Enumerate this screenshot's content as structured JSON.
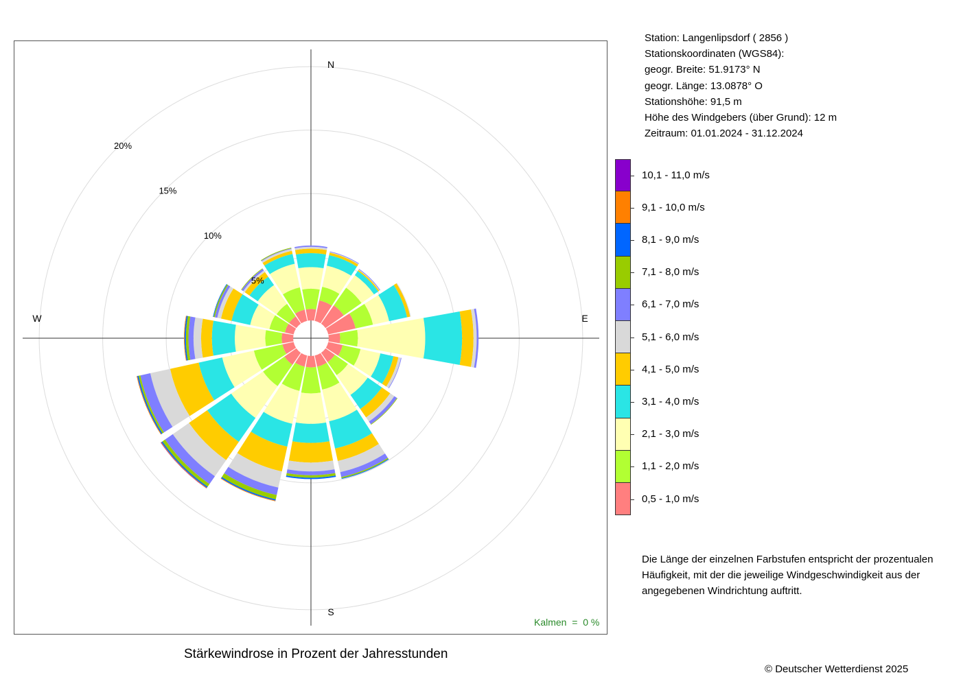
{
  "station_info": {
    "station": "Station:  Langenlipsdorf  ( 2856 )",
    "coords_heading": "Stationskoordinaten (WGS84):",
    "lat": "geogr. Breite: 51.9173° N",
    "lon": "geogr. Länge: 13.0878° O",
    "altitude": "Stationshöhe: 91,5 m",
    "sensor_height": "Höhe des Windgebers (über Grund): 12 m",
    "period": "Zeitraum: 01.01.2024 - 31.12.2024"
  },
  "note": [
    "Die Länge der einzelnen Farbstufen entspricht der prozentualen",
    "Häufigkeit, mit der die jeweilige Windgeschwindigkeit aus der",
    "angegebenen Windrichtung auftritt."
  ],
  "title": "Stärkewindrose in Prozent der Jahresstunden",
  "copyright": "© Deutscher Wetterdienst  2025",
  "calm": "Kalmen  =  0 %",
  "chart_data": {
    "type": "wind_rose",
    "title": "Stärkewindrose in Prozent der Jahresstunden",
    "directions": [
      "N",
      "NNE",
      "NE",
      "ENE",
      "E",
      "ESE",
      "SE",
      "SSE",
      "S",
      "SSW",
      "SW",
      "WSW",
      "W",
      "WNW",
      "NW",
      "NNW"
    ],
    "direction_labels": {
      "N": "N",
      "E": "E",
      "S": "S",
      "W": "W"
    },
    "radial_ticks": [
      5,
      10,
      15,
      20
    ],
    "radial_tick_labels": [
      "5%",
      "10%",
      "15%",
      "20%"
    ],
    "radial_max": 20,
    "center_offset": 1.4,
    "bins": [
      {
        "name": "0,5 - 1,0 m/s",
        "color": "#ff7f7f"
      },
      {
        "name": "1,1 - 2,0 m/s",
        "color": "#b2ff33"
      },
      {
        "name": "2,1 - 3,0 m/s",
        "color": "#ffffb2"
      },
      {
        "name": "3,1 - 4,0 m/s",
        "color": "#2ae5e5"
      },
      {
        "name": "4,1 - 5,0 m/s",
        "color": "#ffcc00"
      },
      {
        "name": "5,1 - 6,0 m/s",
        "color": "#d9d9d9"
      },
      {
        "name": "6,1 - 7,0 m/s",
        "color": "#7f7fff"
      },
      {
        "name": "7,1 - 8,0 m/s",
        "color": "#99cc00"
      },
      {
        "name": "8,1 - 9,0 m/s",
        "color": "#0066ff"
      },
      {
        "name": "9,1 - 10,0 m/s",
        "color": "#ff8000"
      },
      {
        "name": "10,1 - 11,0 m/s",
        "color": "#8800cc"
      }
    ],
    "series": [
      [
        0.9,
        1.65,
        1.75,
        2.2,
        0.9,
        1.15,
        0.9,
        0.9,
        0.9,
        0.9,
        1.15,
        0.9,
        0.9,
        0.7,
        0.7,
        0.9
      ],
      [
        1.6,
        1.1,
        1.7,
        1.4,
        1.4,
        1.45,
        1.25,
        1.85,
        2.05,
        1.95,
        2.05,
        2.3,
        1.3,
        1.25,
        1.2,
        1.8
      ],
      [
        1.7,
        1.7,
        1.2,
        1.3,
        5.3,
        1.6,
        1.9,
        2.55,
        2.4,
        2.65,
        3.05,
        2.55,
        2.4,
        1.55,
        1.8,
        1.9
      ],
      [
        1.1,
        0.85,
        0.4,
        1.45,
        2.9,
        1.05,
        1.35,
        2.2,
        1.5,
        1.85,
        2.3,
        1.9,
        1.8,
        1.5,
        0.8,
        0.8
      ],
      [
        0.35,
        0.2,
        0.1,
        0.25,
        0.9,
        0.4,
        0.8,
        1.0,
        1.55,
        2.0,
        1.75,
        2.3,
        0.85,
        0.85,
        0.45,
        0.25
      ],
      [
        0.15,
        0.05,
        0.05,
        0.05,
        0.25,
        0.2,
        0.4,
        0.9,
        0.7,
        1.3,
        1.55,
        1.6,
        0.6,
        0.3,
        0.15,
        0.15
      ],
      [
        0.1,
        0.05,
        0.05,
        0.0,
        0.15,
        0.05,
        0.25,
        0.4,
        0.3,
        0.6,
        0.75,
        0.8,
        0.4,
        0.2,
        0.15,
        0.05
      ],
      [
        0.0,
        0.0,
        0.0,
        0.0,
        0.0,
        0.0,
        0.05,
        0.1,
        0.2,
        0.35,
        0.25,
        0.15,
        0.2,
        0.1,
        0.05,
        0.05
      ],
      [
        0.0,
        0.0,
        0.0,
        0.0,
        0.0,
        0.0,
        0.0,
        0.05,
        0.1,
        0.1,
        0.1,
        0.1,
        0.1,
        0.05,
        0.0,
        0.0
      ],
      [
        0.0,
        0.0,
        0.0,
        0.0,
        0.0,
        0.0,
        0.0,
        0.0,
        0.0,
        0.05,
        0.05,
        0.05,
        0.05,
        0.0,
        0.0,
        0.0
      ],
      [
        0.0,
        0.0,
        0.0,
        0.0,
        0.0,
        0.0,
        0.0,
        0.0,
        0.0,
        0.0,
        0.02,
        0.0,
        0.0,
        0.0,
        0.0,
        0.0
      ]
    ]
  }
}
